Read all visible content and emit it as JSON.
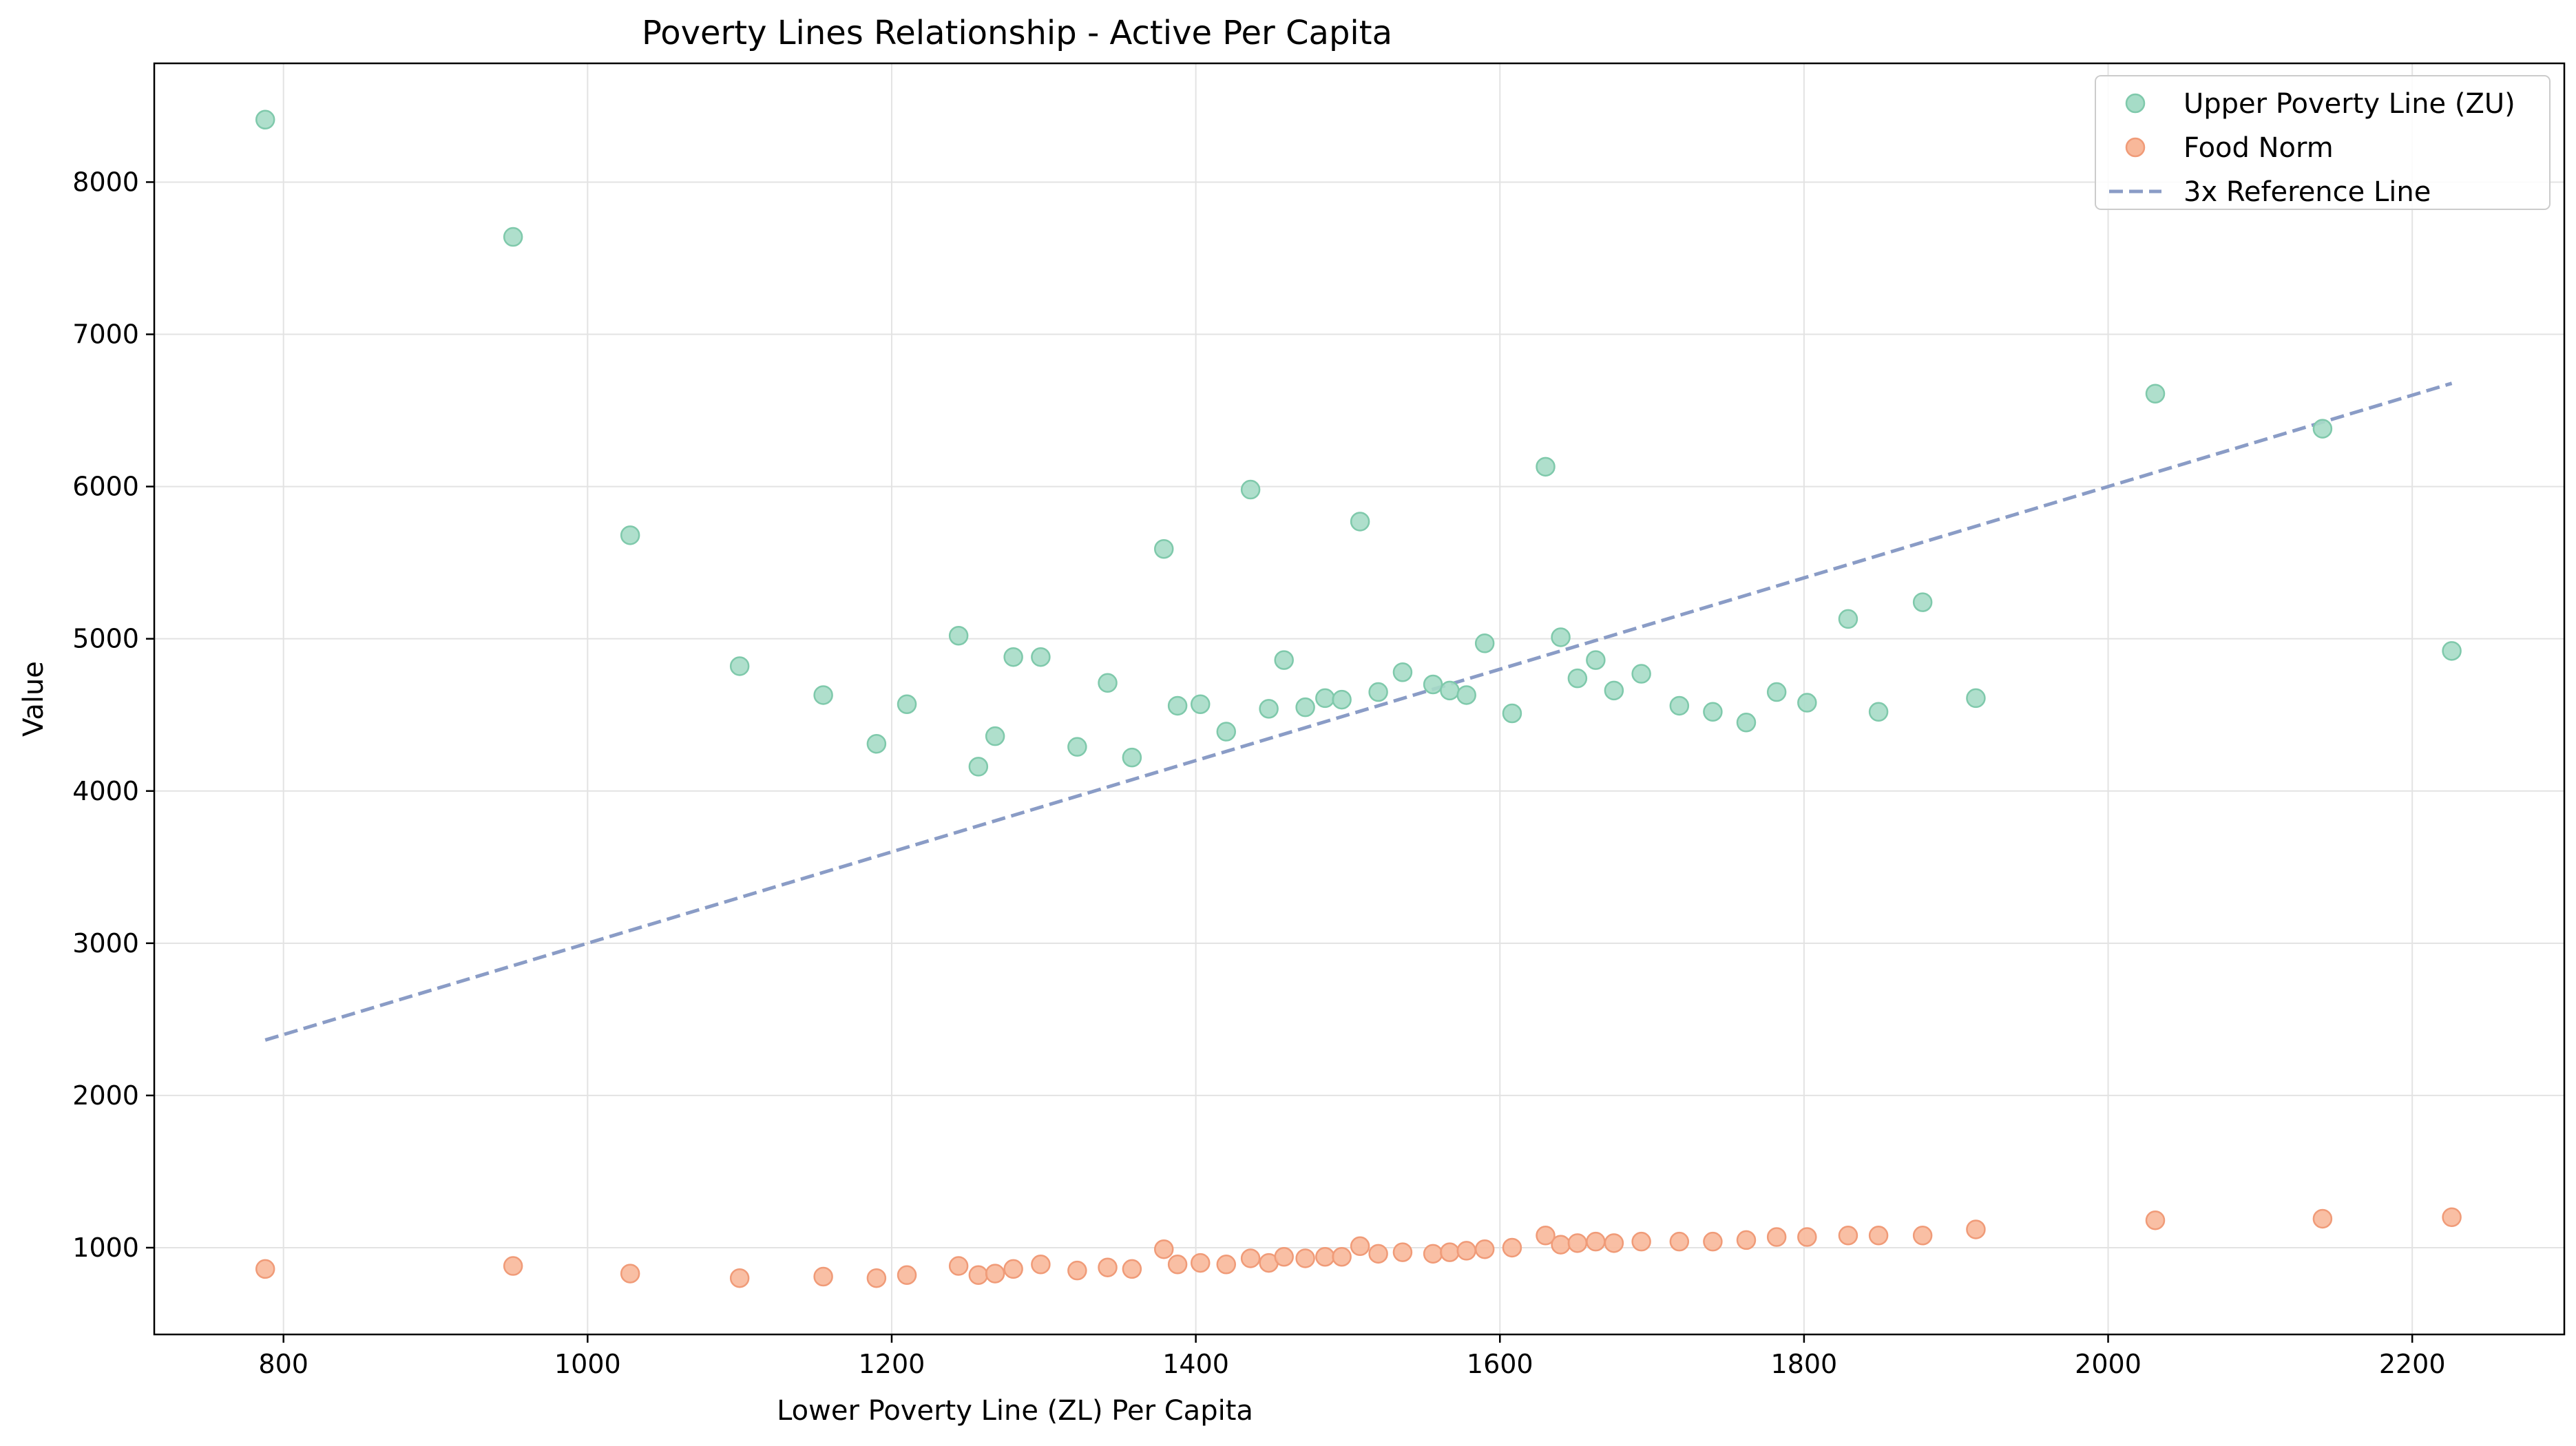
{
  "chart_data": {
    "type": "scatter",
    "title": "Poverty Lines Relationship - Active Per Capita",
    "xlabel": "Lower Poverty Line (ZL) Per Capita",
    "ylabel": "Value",
    "xlim": [
      715,
      2300
    ],
    "ylim": [
      430,
      8780
    ],
    "x_ticks": [
      800,
      1000,
      1200,
      1400,
      1600,
      1800,
      2000,
      2200
    ],
    "y_ticks": [
      1000,
      2000,
      3000,
      4000,
      5000,
      6000,
      7000,
      8000
    ],
    "grid": true,
    "legend_position": "top-right",
    "series": [
      {
        "name": "Upper Poverty Line (ZU)",
        "marker": "circle",
        "color": "#a6dcc7",
        "edge_color": "#7fc9ab",
        "points": [
          [
            788,
            8410
          ],
          [
            951,
            7640
          ],
          [
            1028,
            5680
          ],
          [
            1100,
            4820
          ],
          [
            1155,
            4630
          ],
          [
            1190,
            4310
          ],
          [
            1210,
            4570
          ],
          [
            1244,
            5020
          ],
          [
            1257,
            4160
          ],
          [
            1268,
            4360
          ],
          [
            1280,
            4880
          ],
          [
            1298,
            4880
          ],
          [
            1322,
            4290
          ],
          [
            1342,
            4710
          ],
          [
            1358,
            4220
          ],
          [
            1379,
            5590
          ],
          [
            1388,
            4560
          ],
          [
            1403,
            4570
          ],
          [
            1420,
            4390
          ],
          [
            1436,
            5980
          ],
          [
            1448,
            4540
          ],
          [
            1458,
            4860
          ],
          [
            1472,
            4550
          ],
          [
            1485,
            4610
          ],
          [
            1496,
            4600
          ],
          [
            1508,
            5770
          ],
          [
            1520,
            4650
          ],
          [
            1536,
            4780
          ],
          [
            1556,
            4700
          ],
          [
            1567,
            4660
          ],
          [
            1578,
            4630
          ],
          [
            1590,
            4970
          ],
          [
            1608,
            4510
          ],
          [
            1630,
            6130
          ],
          [
            1640,
            5010
          ],
          [
            1651,
            4740
          ],
          [
            1663,
            4860
          ],
          [
            1675,
            4660
          ],
          [
            1693,
            4770
          ],
          [
            1718,
            4560
          ],
          [
            1740,
            4520
          ],
          [
            1762,
            4450
          ],
          [
            1782,
            4650
          ],
          [
            1802,
            4580
          ],
          [
            1829,
            5130
          ],
          [
            1849,
            4520
          ],
          [
            1878,
            5240
          ],
          [
            1913,
            4610
          ],
          [
            2031,
            6610
          ],
          [
            2141,
            6380
          ],
          [
            2226,
            4920
          ]
        ]
      },
      {
        "name": "Food Norm",
        "marker": "circle",
        "color": "#f8b89a",
        "edge_color": "#f09b78",
        "points": [
          [
            788,
            860
          ],
          [
            951,
            880
          ],
          [
            1028,
            830
          ],
          [
            1100,
            800
          ],
          [
            1155,
            810
          ],
          [
            1190,
            800
          ],
          [
            1210,
            820
          ],
          [
            1244,
            880
          ],
          [
            1257,
            820
          ],
          [
            1268,
            830
          ],
          [
            1280,
            860
          ],
          [
            1298,
            890
          ],
          [
            1322,
            850
          ],
          [
            1342,
            870
          ],
          [
            1358,
            860
          ],
          [
            1379,
            990
          ],
          [
            1388,
            890
          ],
          [
            1403,
            900
          ],
          [
            1420,
            890
          ],
          [
            1436,
            930
          ],
          [
            1448,
            900
          ],
          [
            1458,
            940
          ],
          [
            1472,
            930
          ],
          [
            1485,
            940
          ],
          [
            1496,
            940
          ],
          [
            1508,
            1010
          ],
          [
            1520,
            960
          ],
          [
            1536,
            970
          ],
          [
            1556,
            960
          ],
          [
            1567,
            970
          ],
          [
            1578,
            980
          ],
          [
            1590,
            990
          ],
          [
            1608,
            1000
          ],
          [
            1630,
            1080
          ],
          [
            1640,
            1020
          ],
          [
            1651,
            1030
          ],
          [
            1663,
            1040
          ],
          [
            1675,
            1030
          ],
          [
            1693,
            1040
          ],
          [
            1718,
            1040
          ],
          [
            1740,
            1040
          ],
          [
            1762,
            1050
          ],
          [
            1782,
            1070
          ],
          [
            1802,
            1070
          ],
          [
            1829,
            1080
          ],
          [
            1849,
            1080
          ],
          [
            1878,
            1080
          ],
          [
            1913,
            1120
          ],
          [
            2031,
            1180
          ],
          [
            2141,
            1190
          ],
          [
            2226,
            1200
          ]
        ]
      },
      {
        "name": "3x Reference Line",
        "marker": "dashed-line",
        "color": "#8a9cc6",
        "points": [
          [
            788,
            2364
          ],
          [
            2226,
            6678
          ]
        ]
      }
    ]
  }
}
